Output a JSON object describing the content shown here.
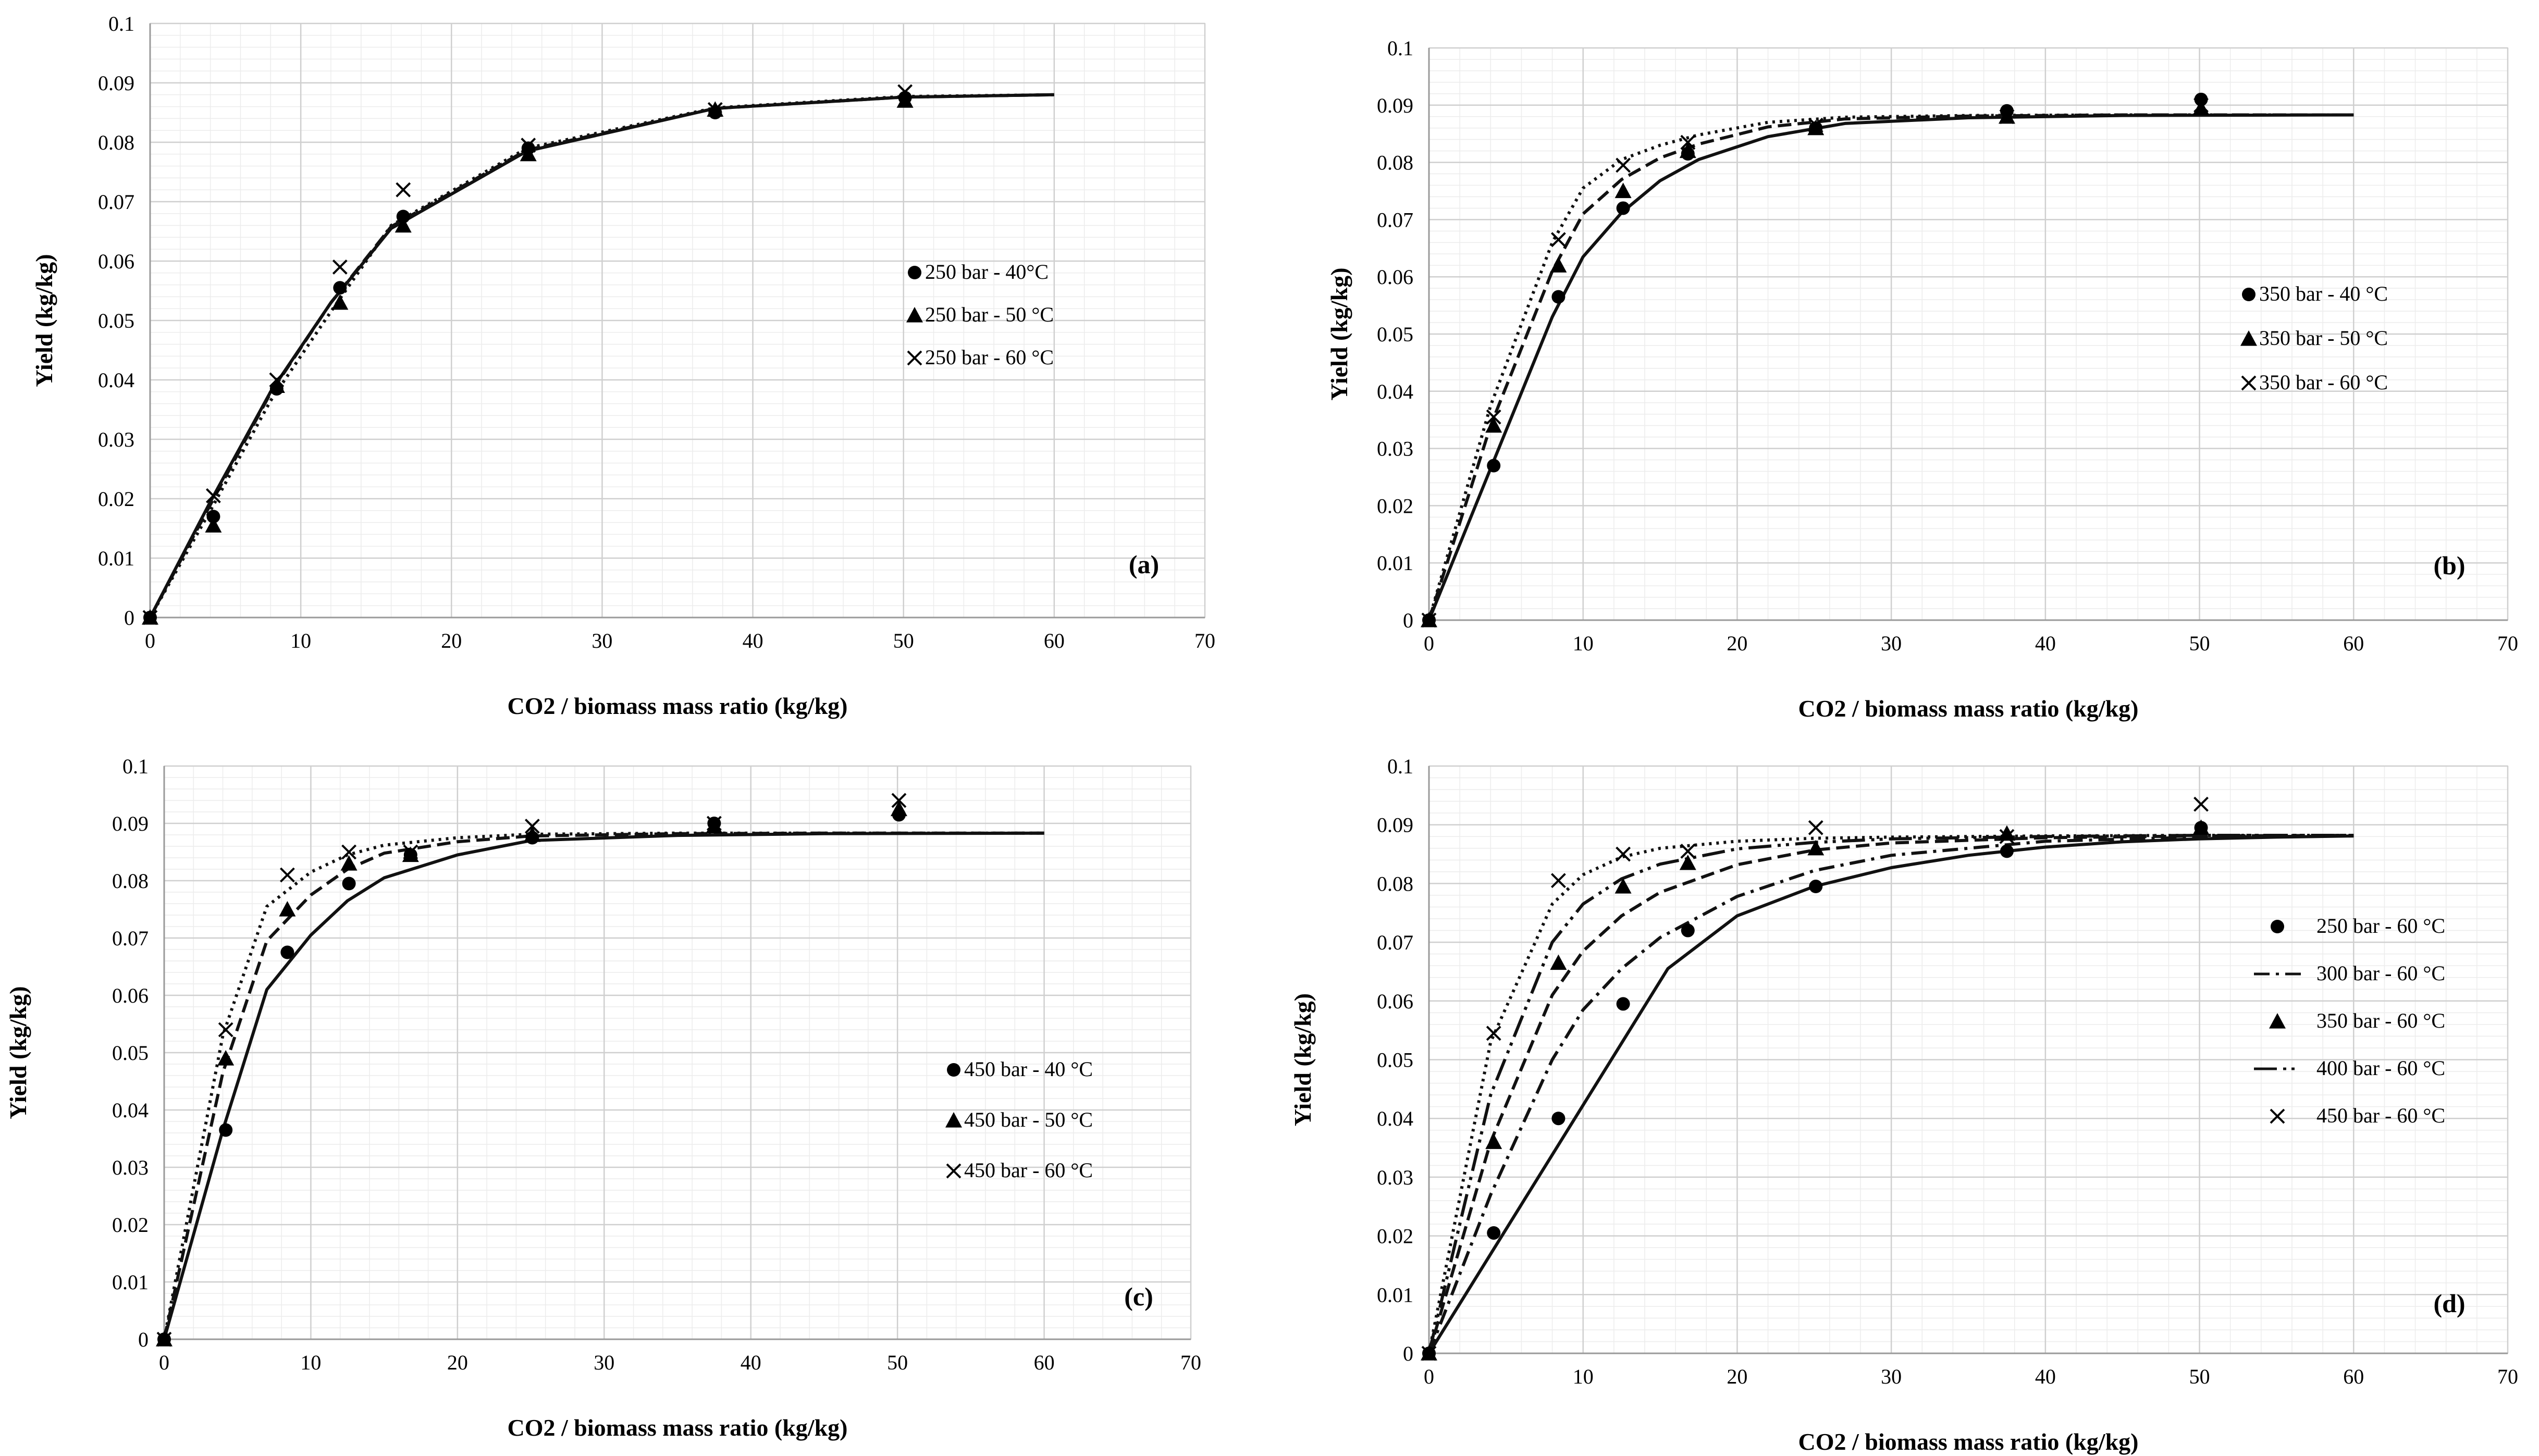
{
  "chart_data": [
    {
      "type": "scatter",
      "panel_label": "(a)",
      "xlabel": "CO2 / biomass mass ratio (kg/kg)",
      "ylabel": "Yield (kg/kg)",
      "xlim": [
        0,
        70
      ],
      "ylim": [
        0,
        0.1
      ],
      "xticks": [
        "0",
        "10",
        "20",
        "30",
        "40",
        "50",
        "60",
        "70"
      ],
      "yticks": [
        "0",
        "0.01",
        "0.02",
        "0.03",
        "0.04",
        "0.05",
        "0.06",
        "0.07",
        "0.08",
        "0.09",
        "0.1"
      ],
      "grid": true,
      "legend_position": "center-right",
      "series": [
        {
          "name": "250 bar - 40°C",
          "marker": "circle",
          "line": "solid",
          "x": [
            0,
            4.2,
            8.4,
            12.6,
            16.8,
            25.1,
            37.5,
            50.1
          ],
          "y": [
            0,
            0.017,
            0.0385,
            0.0555,
            0.0675,
            0.079,
            0.085,
            0.0875
          ],
          "model_y": [
            0,
            0.0195,
            0.038,
            0.053,
            0.0655,
            0.0785,
            0.0857,
            0.0876,
            0.088
          ]
        },
        {
          "name": "250 bar - 50 °C",
          "marker": "triangle",
          "line": "dashed",
          "x": [
            0,
            4.2,
            8.4,
            12.6,
            16.8,
            25.1,
            37.5,
            50.1
          ],
          "y": [
            0,
            0.0155,
            0.039,
            0.053,
            0.066,
            0.078,
            0.0855,
            0.087
          ],
          "model_y": [
            0,
            0.019,
            0.0378,
            0.053,
            0.0658,
            0.0787,
            0.0857,
            0.0876,
            0.088
          ]
        },
        {
          "name": "250 bar - 60 °C",
          "marker": "x",
          "line": "dotted",
          "x": [
            0,
            4.2,
            8.4,
            12.6,
            16.8,
            25.1,
            37.5,
            50.1
          ],
          "y": [
            0,
            0.0205,
            0.04,
            0.059,
            0.072,
            0.0795,
            0.0855,
            0.0885
          ],
          "model_y": [
            0,
            0.018,
            0.0365,
            0.0515,
            0.066,
            0.079,
            0.0858,
            0.0877,
            0.088
          ]
        }
      ],
      "model_x": [
        0,
        4,
        8,
        12,
        16,
        25,
        37.5,
        50,
        60
      ]
    },
    {
      "type": "scatter",
      "panel_label": "(b)",
      "xlabel": "CO2 / biomass mass ratio (kg/kg)",
      "ylabel": "Yield (kg/kg)",
      "xlim": [
        0,
        70
      ],
      "ylim": [
        0,
        0.1
      ],
      "xticks": [
        "0",
        "10",
        "20",
        "30",
        "40",
        "50",
        "60",
        "70"
      ],
      "yticks": [
        "0",
        "0.01",
        "0.02",
        "0.03",
        "0.04",
        "0.05",
        "0.06",
        "0.07",
        "0.08",
        "0.09",
        "0.1"
      ],
      "grid": true,
      "legend_position": "center-right",
      "series": [
        {
          "name": "350 bar - 40 °C",
          "marker": "circle",
          "line": "solid",
          "x": [
            0,
            4.2,
            8.4,
            12.6,
            16.8,
            25.1,
            37.5,
            50.1
          ],
          "y": [
            0,
            0.027,
            0.0565,
            0.072,
            0.0815,
            0.086,
            0.089,
            0.091
          ],
          "model_y": [
            0,
            0.0265,
            0.053,
            0.0635,
            0.0712,
            0.0768,
            0.0805,
            0.0845,
            0.0868,
            0.0878,
            0.0882,
            0.0883
          ]
        },
        {
          "name": "350 bar - 50 °C",
          "marker": "triangle",
          "line": "dashed",
          "x": [
            0,
            4.2,
            8.4,
            12.6,
            16.8,
            25.1,
            37.5,
            50.1
          ],
          "y": [
            0,
            0.034,
            0.062,
            0.075,
            0.082,
            0.086,
            0.088,
            0.0895
          ],
          "model_y": [
            0,
            0.034,
            0.061,
            0.071,
            0.077,
            0.0808,
            0.0832,
            0.0862,
            0.0876,
            0.0881,
            0.0883,
            0.0883
          ]
        },
        {
          "name": "350 bar - 60 °C",
          "marker": "x",
          "line": "dotted",
          "x": [
            0,
            4.2,
            8.4,
            12.6,
            16.8,
            25.1,
            37.5,
            50.1
          ],
          "y": [
            0,
            0.0355,
            0.0665,
            0.0795,
            0.0835,
            0.0865,
            0.088,
            0.09
          ],
          "model_y": [
            0,
            0.0375,
            0.066,
            0.0755,
            0.0805,
            0.083,
            0.0848,
            0.087,
            0.0879,
            0.0882,
            0.0883,
            0.0883
          ]
        }
      ],
      "model_x": [
        0,
        4,
        8,
        10,
        12.5,
        15,
        17.5,
        22,
        27,
        35,
        45,
        60
      ]
    },
    {
      "type": "scatter",
      "panel_label": "(c)",
      "xlabel": "CO2 / biomass mass ratio (kg/kg)",
      "ylabel": "Yield (kg/kg)",
      "xlim": [
        0,
        70
      ],
      "ylim": [
        0,
        0.1
      ],
      "xticks": [
        "0",
        "10",
        "20",
        "30",
        "40",
        "50",
        "60",
        "70"
      ],
      "yticks": [
        "0",
        "0.01",
        "0.02",
        "0.03",
        "0.04",
        "0.05",
        "0.06",
        "0.07",
        "0.08",
        "0.09",
        "0.1"
      ],
      "grid": true,
      "legend_position": "center-right",
      "series": [
        {
          "name": "450 bar - 40 °C",
          "marker": "circle",
          "line": "solid",
          "x": [
            0,
            4.2,
            8.4,
            12.6,
            16.8,
            25.1,
            37.5,
            50.1
          ],
          "y": [
            0,
            0.0365,
            0.0675,
            0.0795,
            0.0845,
            0.0875,
            0.09,
            0.0915
          ],
          "model_y": [
            0,
            0.0365,
            0.061,
            0.0705,
            0.0765,
            0.0805,
            0.0845,
            0.087,
            0.0879,
            0.0882,
            0.0883
          ]
        },
        {
          "name": "450 bar - 50 °C",
          "marker": "triangle",
          "line": "dashed",
          "x": [
            0,
            4.2,
            8.4,
            12.6,
            16.8,
            25.1,
            37.5,
            50.1
          ],
          "y": [
            0,
            0.049,
            0.075,
            0.083,
            0.0845,
            0.088,
            0.0895,
            0.0925
          ],
          "model_y": [
            0,
            0.0465,
            0.0695,
            0.0775,
            0.082,
            0.0848,
            0.0868,
            0.0878,
            0.0882,
            0.0883,
            0.0883
          ]
        },
        {
          "name": "450 bar - 60 °C",
          "marker": "x",
          "line": "dotted",
          "x": [
            0,
            4.2,
            8.4,
            12.6,
            16.8,
            25.1,
            37.5,
            50.1
          ],
          "y": [
            0,
            0.054,
            0.081,
            0.085,
            0.085,
            0.0895,
            0.09,
            0.094
          ],
          "model_y": [
            0,
            0.053,
            0.0755,
            0.0815,
            0.0845,
            0.0862,
            0.0875,
            0.0881,
            0.0883,
            0.0883,
            0.0883
          ]
        }
      ],
      "model_x": [
        0,
        4,
        7,
        10,
        12.5,
        15,
        20,
        25,
        35,
        45,
        60
      ]
    },
    {
      "type": "scatter",
      "panel_label": "(d)",
      "xlabel": "CO2 / biomass mass ratio (kg/kg)",
      "ylabel": "Yield (kg/kg)",
      "xlim": [
        0,
        70
      ],
      "ylim": [
        0,
        0.1
      ],
      "xticks": [
        "0",
        "10",
        "20",
        "30",
        "40",
        "50",
        "60",
        "70"
      ],
      "yticks": [
        "0",
        "0.01",
        "0.02",
        "0.03",
        "0.04",
        "0.05",
        "0.06",
        "0.07",
        "0.08",
        "0.09",
        "0.1"
      ],
      "grid": true,
      "legend_position": "center-right",
      "series": [
        {
          "name": "250 bar - 60 °C",
          "marker": "circle",
          "line": "solid",
          "x": [
            0,
            4.2,
            8.4,
            12.6,
            16.8,
            25.1,
            37.5,
            50.1
          ],
          "y": [
            0,
            0.0205,
            0.04,
            0.0595,
            0.072,
            0.0795,
            0.0855,
            0.0895
          ],
          "model_x": [
            0,
            15.5,
            20,
            25,
            30,
            35,
            40,
            45,
            50,
            55,
            60
          ],
          "model_y": [
            0,
            0.0655,
            0.0745,
            0.0795,
            0.0827,
            0.0848,
            0.0862,
            0.0871,
            0.0876,
            0.0879,
            0.0881
          ]
        },
        {
          "name": "300 bar - 60 °C",
          "marker": "none",
          "line": "dash-dot",
          "x": [],
          "y": [],
          "model_x": [
            0,
            4,
            8,
            10,
            12.5,
            15,
            20,
            25,
            30,
            40,
            50,
            60
          ],
          "model_y": [
            0,
            0.027,
            0.05,
            0.0585,
            0.0655,
            0.0708,
            0.0778,
            0.0822,
            0.0848,
            0.0872,
            0.0879,
            0.0881
          ]
        },
        {
          "name": "350 bar - 60 °C",
          "marker": "triangle",
          "line": "dashed",
          "x": [
            0,
            4.2,
            8.4,
            12.6,
            16.8,
            25.1,
            37.5,
            50.1
          ],
          "y": [
            0,
            0.036,
            0.0665,
            0.0795,
            0.0835,
            0.086,
            0.0885,
            0.0895
          ],
          "model_x": [
            0,
            4,
            8,
            10,
            12.5,
            15,
            20,
            25,
            30,
            40,
            50,
            60
          ],
          "model_y": [
            0,
            0.036,
            0.061,
            0.0685,
            0.0745,
            0.0785,
            0.0832,
            0.0857,
            0.0869,
            0.0878,
            0.0881,
            0.0882
          ]
        },
        {
          "name": "400 bar - 60 °C",
          "marker": "none",
          "line": "long-dash-dot-dot",
          "x": [],
          "y": [],
          "model_x": [
            0,
            4,
            8,
            10,
            12.5,
            15,
            20,
            25,
            30,
            40,
            50,
            60
          ],
          "model_y": [
            0,
            0.044,
            0.07,
            0.0765,
            0.0808,
            0.0833,
            0.0859,
            0.087,
            0.0876,
            0.088,
            0.0882,
            0.0882
          ]
        },
        {
          "name": "450 bar - 60 °C",
          "marker": "x",
          "line": "dotted",
          "x": [
            0,
            4.2,
            8.4,
            12.6,
            16.8,
            25.1,
            37.5,
            50.1
          ],
          "y": [
            0,
            0.0545,
            0.0805,
            0.085,
            0.0855,
            0.0895,
            0.088,
            0.0935
          ],
          "model_x": [
            0,
            4,
            8,
            10,
            12.5,
            15,
            20,
            25,
            30,
            40,
            50,
            60
          ],
          "model_y": [
            0,
            0.053,
            0.0765,
            0.0815,
            0.0845,
            0.086,
            0.0872,
            0.0877,
            0.0879,
            0.0881,
            0.0882,
            0.0882
          ]
        }
      ]
    }
  ]
}
